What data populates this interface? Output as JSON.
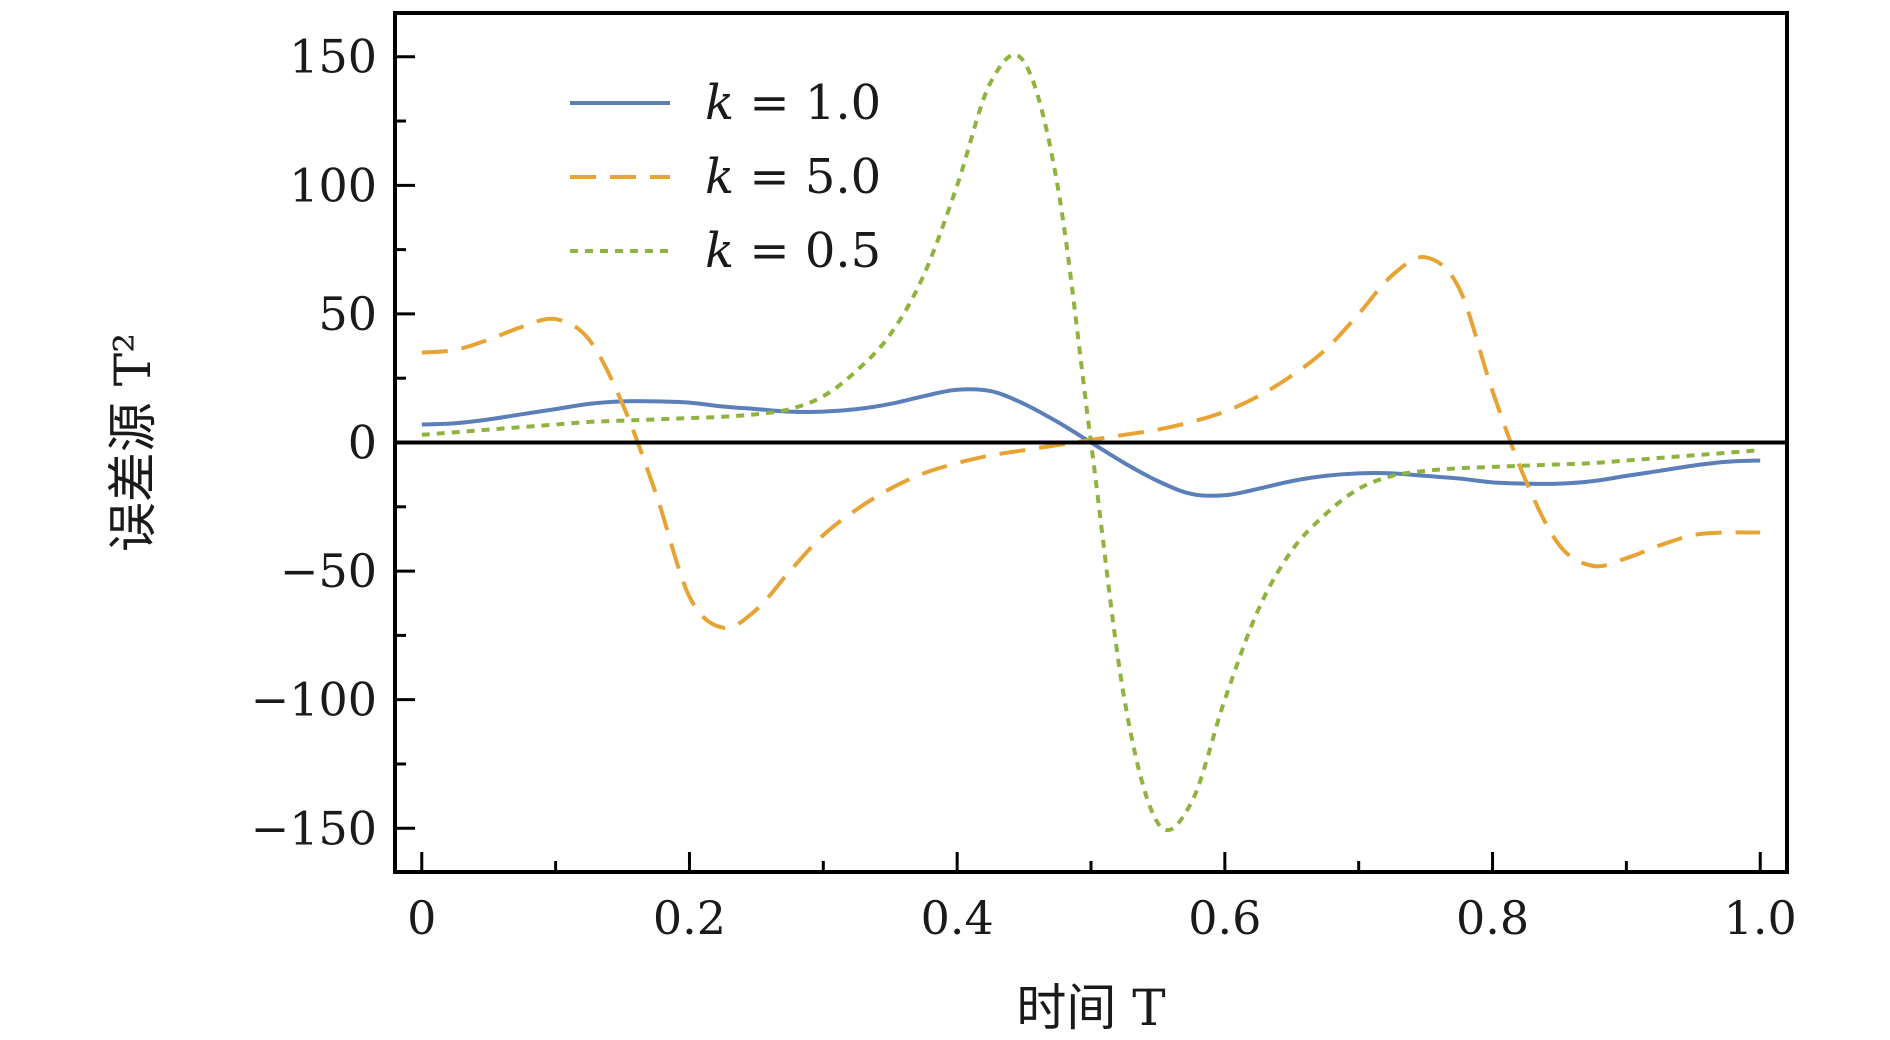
{
  "chart_data": {
    "type": "line",
    "xlabel": "时间 T",
    "ylabel": "误差源 T²",
    "xlim": [
      -0.02,
      1.02
    ],
    "ylim": [
      -167,
      167
    ],
    "x_ticks": [
      0,
      0.2,
      0.4,
      0.6,
      0.8,
      1.0
    ],
    "x_tick_labels": [
      "0",
      "0.2",
      "0.4",
      "0.6",
      "0.8",
      "1.0"
    ],
    "y_ticks": [
      150,
      100,
      50,
      0,
      -50,
      -100,
      -150
    ],
    "y_tick_labels": [
      "150",
      "100",
      "50",
      "0",
      "−50",
      "−100",
      "−150"
    ],
    "zero_line": true,
    "grid": false,
    "legend_position": "top-left",
    "x": [
      0,
      0.025,
      0.05,
      0.075,
      0.1,
      0.125,
      0.15,
      0.175,
      0.2,
      0.225,
      0.25,
      0.275,
      0.3,
      0.325,
      0.35,
      0.375,
      0.4,
      0.425,
      0.45,
      0.475,
      0.5,
      0.525,
      0.55,
      0.575,
      0.6,
      0.625,
      0.65,
      0.675,
      0.7,
      0.725,
      0.75,
      0.775,
      0.8,
      0.825,
      0.85,
      0.875,
      0.9,
      0.925,
      0.95,
      0.975,
      1.0
    ],
    "series": [
      {
        "name": "k = 1.0",
        "color": "#5b7fb8",
        "dash": "solid",
        "values": [
          7,
          7.5,
          9,
          11,
          13,
          15,
          16,
          16,
          15.5,
          14,
          13,
          12,
          12,
          13,
          15,
          18,
          20.5,
          20,
          15,
          8,
          0,
          -8,
          -15,
          -20,
          -20.5,
          -18,
          -15,
          -13,
          -12,
          -12,
          -13,
          -14,
          -15.5,
          -16,
          -16,
          -15,
          -13,
          -11,
          -9,
          -7.5,
          -7
        ]
      },
      {
        "name": "k = 5.0",
        "color": "#e8a335",
        "dash": "dashed",
        "values": [
          35,
          36,
          40,
          45,
          48,
          40,
          15,
          -20,
          -60,
          -72,
          -65,
          -50,
          -36,
          -26,
          -18,
          -12,
          -8,
          -5,
          -3,
          -1,
          1,
          3,
          5,
          8,
          12,
          18,
          26,
          36,
          50,
          65,
          72,
          60,
          20,
          -15,
          -40,
          -48,
          -45,
          -40,
          -36,
          -35,
          -35
        ]
      },
      {
        "name": "k = 0.5",
        "color": "#8fb33e",
        "dash": "dotted",
        "values": [
          3,
          4,
          5,
          6,
          7,
          8,
          8.5,
          9,
          9.5,
          10,
          11,
          13,
          18,
          28,
          42,
          65,
          100,
          140,
          148,
          100,
          0,
          -100,
          -148,
          -140,
          -100,
          -65,
          -42,
          -28,
          -18,
          -13,
          -11,
          -10,
          -9.5,
          -9,
          -8.5,
          -8,
          -7,
          -6,
          -5,
          -4,
          -3
        ]
      }
    ]
  }
}
